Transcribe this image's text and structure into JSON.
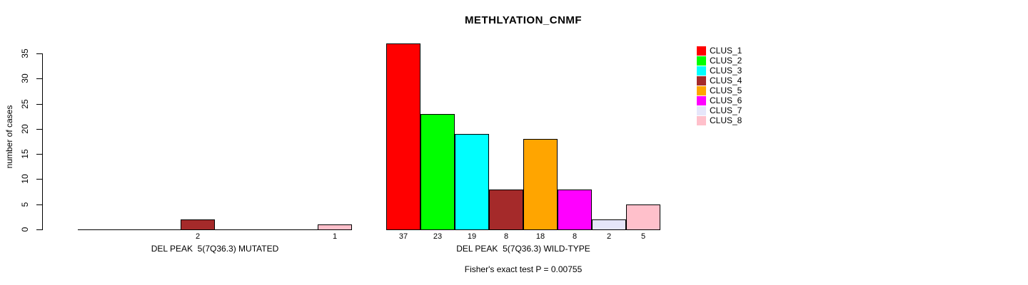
{
  "chart_data": {
    "type": "bar",
    "title": "METHLYATION_CNMF",
    "ylabel": "number of cases",
    "xlabel": "",
    "ylim": [
      0,
      37
    ],
    "yticks": [
      0,
      5,
      10,
      15,
      20,
      25,
      30,
      35
    ],
    "grid": false,
    "legend_position": "right",
    "categories": [
      "CLUS_1",
      "CLUS_2",
      "CLUS_3",
      "CLUS_4",
      "CLUS_5",
      "CLUS_6",
      "CLUS_7",
      "CLUS_8"
    ],
    "colors": [
      "#FF0000",
      "#00FF00",
      "#00FFFF",
      "#A52A2A",
      "#FFA500",
      "#FF00FF",
      "#E6E6FA",
      "#FFC0CB"
    ],
    "groups": [
      {
        "label": "DEL PEAK  5(7Q36.3) MUTATED",
        "values": [
          0,
          0,
          0,
          2,
          0,
          0,
          0,
          1
        ]
      },
      {
        "label": "DEL PEAK  5(7Q36.3) WILD-TYPE",
        "values": [
          37,
          23,
          19,
          8,
          18,
          8,
          2,
          5
        ]
      }
    ],
    "footer": "Fisher's exact test P = 0.00755",
    "legend": [
      {
        "label": "CLUS_1",
        "color": "#FF0000"
      },
      {
        "label": "CLUS_2",
        "color": "#00FF00"
      },
      {
        "label": "CLUS_3",
        "color": "#00FFFF"
      },
      {
        "label": "CLUS_4",
        "color": "#A52A2A"
      },
      {
        "label": "CLUS_5",
        "color": "#FFA500"
      },
      {
        "label": "CLUS_6",
        "color": "#FF00FF"
      },
      {
        "label": "CLUS_7",
        "color": "#E6E6FA"
      },
      {
        "label": "CLUS_8",
        "color": "#FFC0CB"
      }
    ]
  }
}
